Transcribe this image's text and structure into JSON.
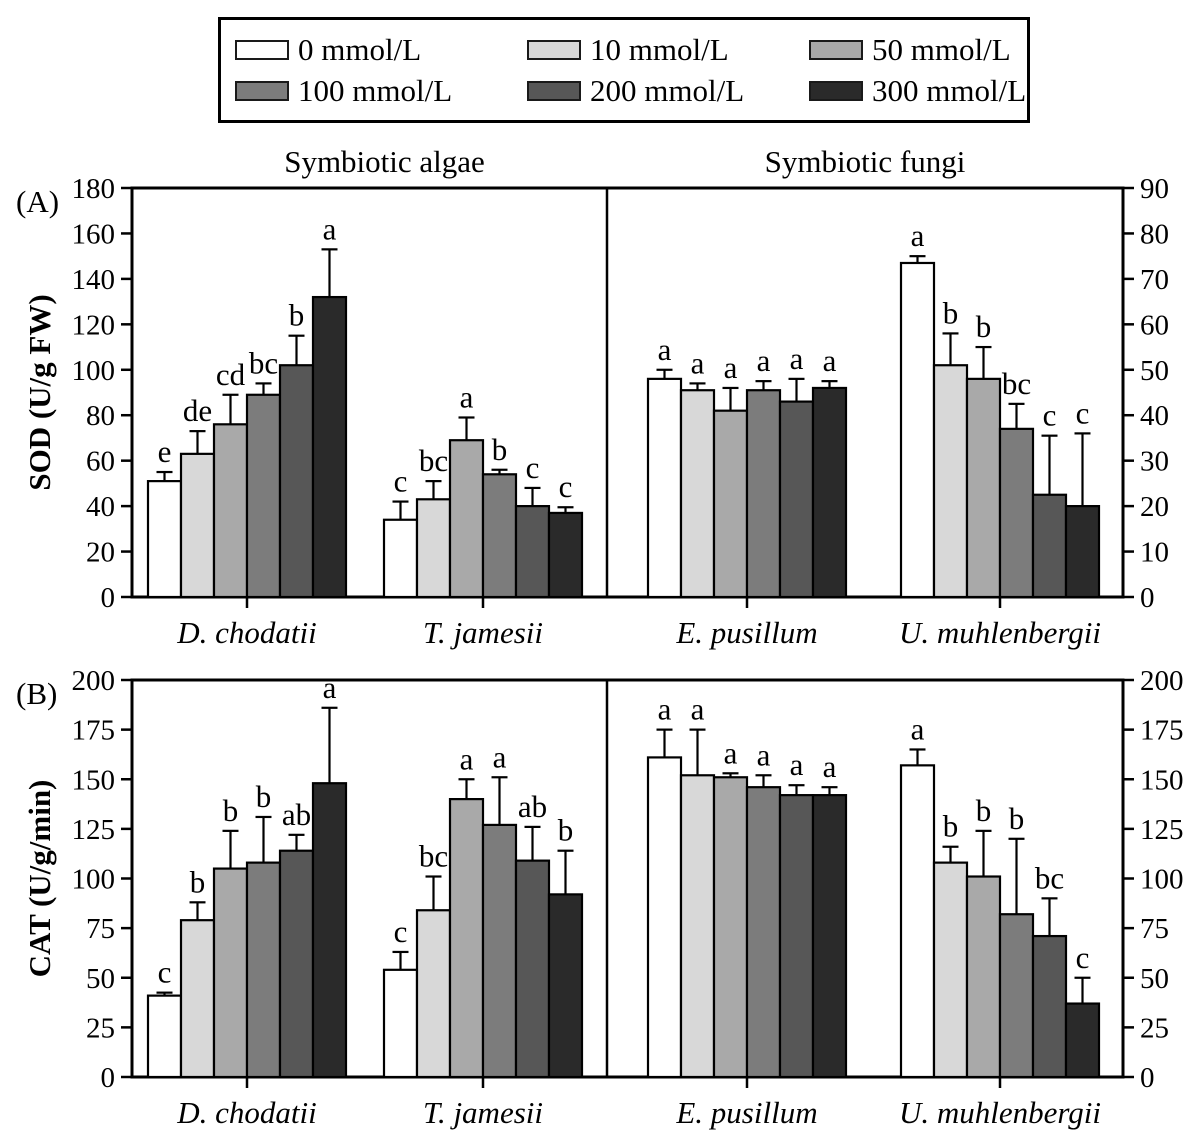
{
  "legend": {
    "items": [
      {
        "label": "0 mmol/L",
        "color": "#ffffff"
      },
      {
        "label": "10 mmol/L",
        "color": "#d8d8d8"
      },
      {
        "label": "50 mmol/L",
        "color": "#a9a9a9"
      },
      {
        "label": "100 mmol/L",
        "color": "#7c7c7c"
      },
      {
        "label": "200 mmol/L",
        "color": "#575757"
      },
      {
        "label": "300 mmol/L",
        "color": "#2a2a2a"
      }
    ]
  },
  "chart_data": [
    {
      "type": "bar",
      "panel_label": "(A)",
      "ylabel": "SOD (U/g FW)",
      "series_labels": [
        "0 mmol/L",
        "10 mmol/L",
        "50 mmol/L",
        "100 mmol/L",
        "200 mmol/L",
        "300 mmol/L"
      ],
      "subpanels": [
        {
          "title": "Symbiotic algae",
          "axis_side": "left",
          "ylim": [
            0,
            180
          ],
          "ystep": 20,
          "groups": [
            {
              "category": "D. chodatii",
              "values": [
                51,
                63,
                76,
                89,
                102,
                132
              ],
              "errors": [
                4,
                10,
                13,
                5,
                13,
                21
              ],
              "letters": [
                "e",
                "de",
                "cd",
                "bc",
                "b",
                "a"
              ]
            },
            {
              "category": "T. jamesii",
              "values": [
                34,
                43,
                69,
                54,
                40,
                37
              ],
              "errors": [
                8,
                8,
                10,
                2,
                8,
                2.5
              ],
              "letters": [
                "c",
                "bc",
                "a",
                "b",
                "c",
                "c"
              ]
            }
          ]
        },
        {
          "title": "Symbiotic fungi",
          "axis_side": "right",
          "ylim": [
            0,
            90
          ],
          "ystep": 10,
          "groups": [
            {
              "category": "E. pusillum",
              "values": [
                48,
                45.5,
                41,
                45.5,
                43,
                46
              ],
              "errors": [
                2,
                1.5,
                5,
                2,
                5,
                1.5
              ],
              "letters": [
                "a",
                "a",
                "a",
                "a",
                "a",
                "a"
              ]
            },
            {
              "category": "U. muhlenbergii",
              "values": [
                73.5,
                51,
                48,
                37,
                22.5,
                20
              ],
              "errors": [
                1.5,
                7,
                7,
                5.5,
                13,
                16
              ],
              "letters": [
                "a",
                "b",
                "b",
                "bc",
                "c",
                "c"
              ]
            }
          ]
        }
      ]
    },
    {
      "type": "bar",
      "panel_label": "(B)",
      "ylabel": "CAT (U/g/min)",
      "series_labels": [
        "0 mmol/L",
        "10 mmol/L",
        "50 mmol/L",
        "100 mmol/L",
        "200 mmol/L",
        "300 mmol/L"
      ],
      "subpanels": [
        {
          "title": "",
          "axis_side": "left",
          "ylim": [
            0,
            200
          ],
          "ystep": 25,
          "groups": [
            {
              "category": "D. chodatii",
              "values": [
                41,
                79,
                105,
                108,
                114,
                148
              ],
              "errors": [
                1.5,
                9,
                19,
                23,
                8,
                38
              ],
              "letters": [
                "c",
                "b",
                "b",
                "b",
                "ab",
                "a"
              ]
            },
            {
              "category": "T. jamesii",
              "values": [
                54,
                84,
                140,
                127,
                109,
                92
              ],
              "errors": [
                9,
                17,
                10,
                24,
                17,
                22
              ],
              "letters": [
                "c",
                "bc",
                "a",
                "a",
                "ab",
                "b"
              ]
            }
          ]
        },
        {
          "title": "",
          "axis_side": "right",
          "ylim": [
            0,
            200
          ],
          "ystep": 25,
          "groups": [
            {
              "category": "E. pusillum",
              "values": [
                161,
                152,
                151,
                146,
                142,
                142
              ],
              "errors": [
                14,
                23,
                2,
                6,
                5,
                4
              ],
              "letters": [
                "a",
                "a",
                "a",
                "a",
                "a",
                "a"
              ]
            },
            {
              "category": "U. muhlenbergii",
              "values": [
                157,
                108,
                101,
                82,
                71,
                37
              ],
              "errors": [
                8,
                8,
                23,
                38,
                19,
                13
              ],
              "letters": [
                "a",
                "b",
                "b",
                "b",
                "bc",
                "c"
              ]
            }
          ]
        }
      ]
    }
  ]
}
